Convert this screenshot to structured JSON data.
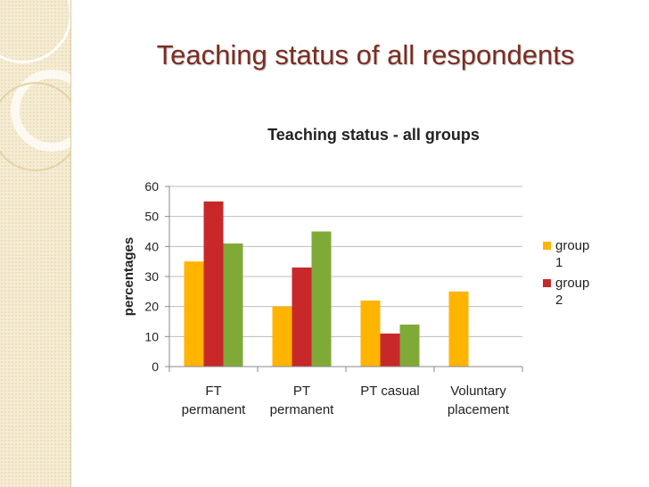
{
  "slide": {
    "title": "Teaching status of all respondents"
  },
  "colors": {
    "group1": "#ffb400",
    "group2": "#c8282a",
    "group3": "#80aa38",
    "title": "#7a2d22",
    "sidebar": "#f5ecd3"
  },
  "chart_data": {
    "type": "bar",
    "title": "Teaching status - all groups",
    "xlabel": "",
    "ylabel": "percentages",
    "ylim": [
      0,
      60
    ],
    "yticks": [
      "0",
      "10",
      "20",
      "30",
      "40",
      "50",
      "60"
    ],
    "categories": [
      [
        "FT",
        "permanent"
      ],
      [
        "PT",
        "permanent"
      ],
      [
        "PT casual"
      ],
      [
        "Voluntary",
        "placement"
      ]
    ],
    "series": [
      {
        "name": [
          "group",
          "1"
        ],
        "color": "#ffb400",
        "values": [
          35,
          20,
          22,
          25
        ]
      },
      {
        "name": [
          "group",
          "2"
        ],
        "color": "#c8282a",
        "values": [
          55,
          33,
          11,
          null
        ]
      },
      {
        "name": "",
        "color": "#80aa38",
        "values": [
          41,
          45,
          14,
          null
        ]
      }
    ],
    "grid": true,
    "legend": "right"
  }
}
